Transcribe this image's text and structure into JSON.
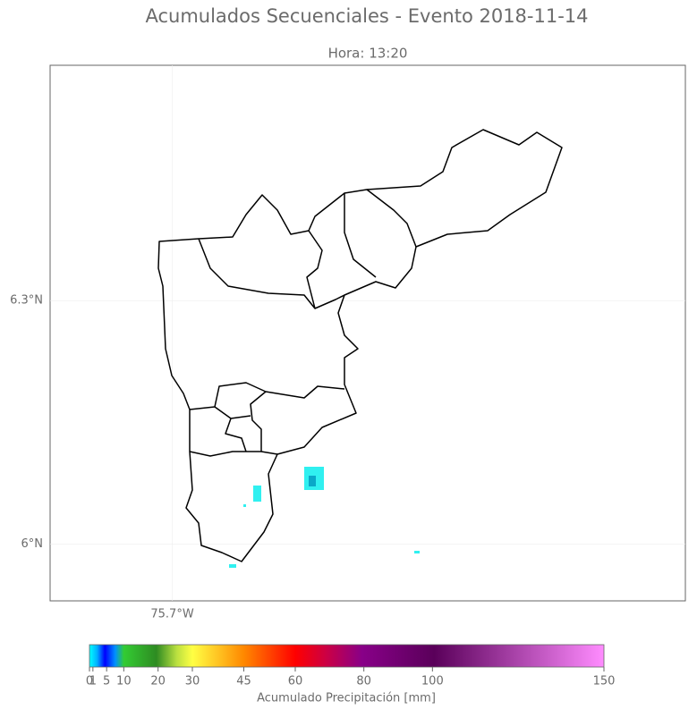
{
  "chart_data": {
    "type": "map",
    "title": "Acumulados Secuenciales - Evento 2018-11-14",
    "subtitle": "Hora: 13:20",
    "xlim": [
      -75.85,
      -75.07
    ],
    "ylim": [
      5.93,
      6.59
    ],
    "xticks": [
      {
        "value": -75.7,
        "label": "75.7°W"
      }
    ],
    "yticks": [
      {
        "value": 6.0,
        "label": "6°N"
      },
      {
        "value": 6.3,
        "label": "6.3°N"
      }
    ],
    "grid": true,
    "colorbar": {
      "label": "Acumulado Precipitación [mm]",
      "lim": [
        0,
        150
      ],
      "ticks": [
        0,
        1,
        5,
        10,
        20,
        30,
        45,
        60,
        80,
        100,
        150
      ]
    }
  }
}
